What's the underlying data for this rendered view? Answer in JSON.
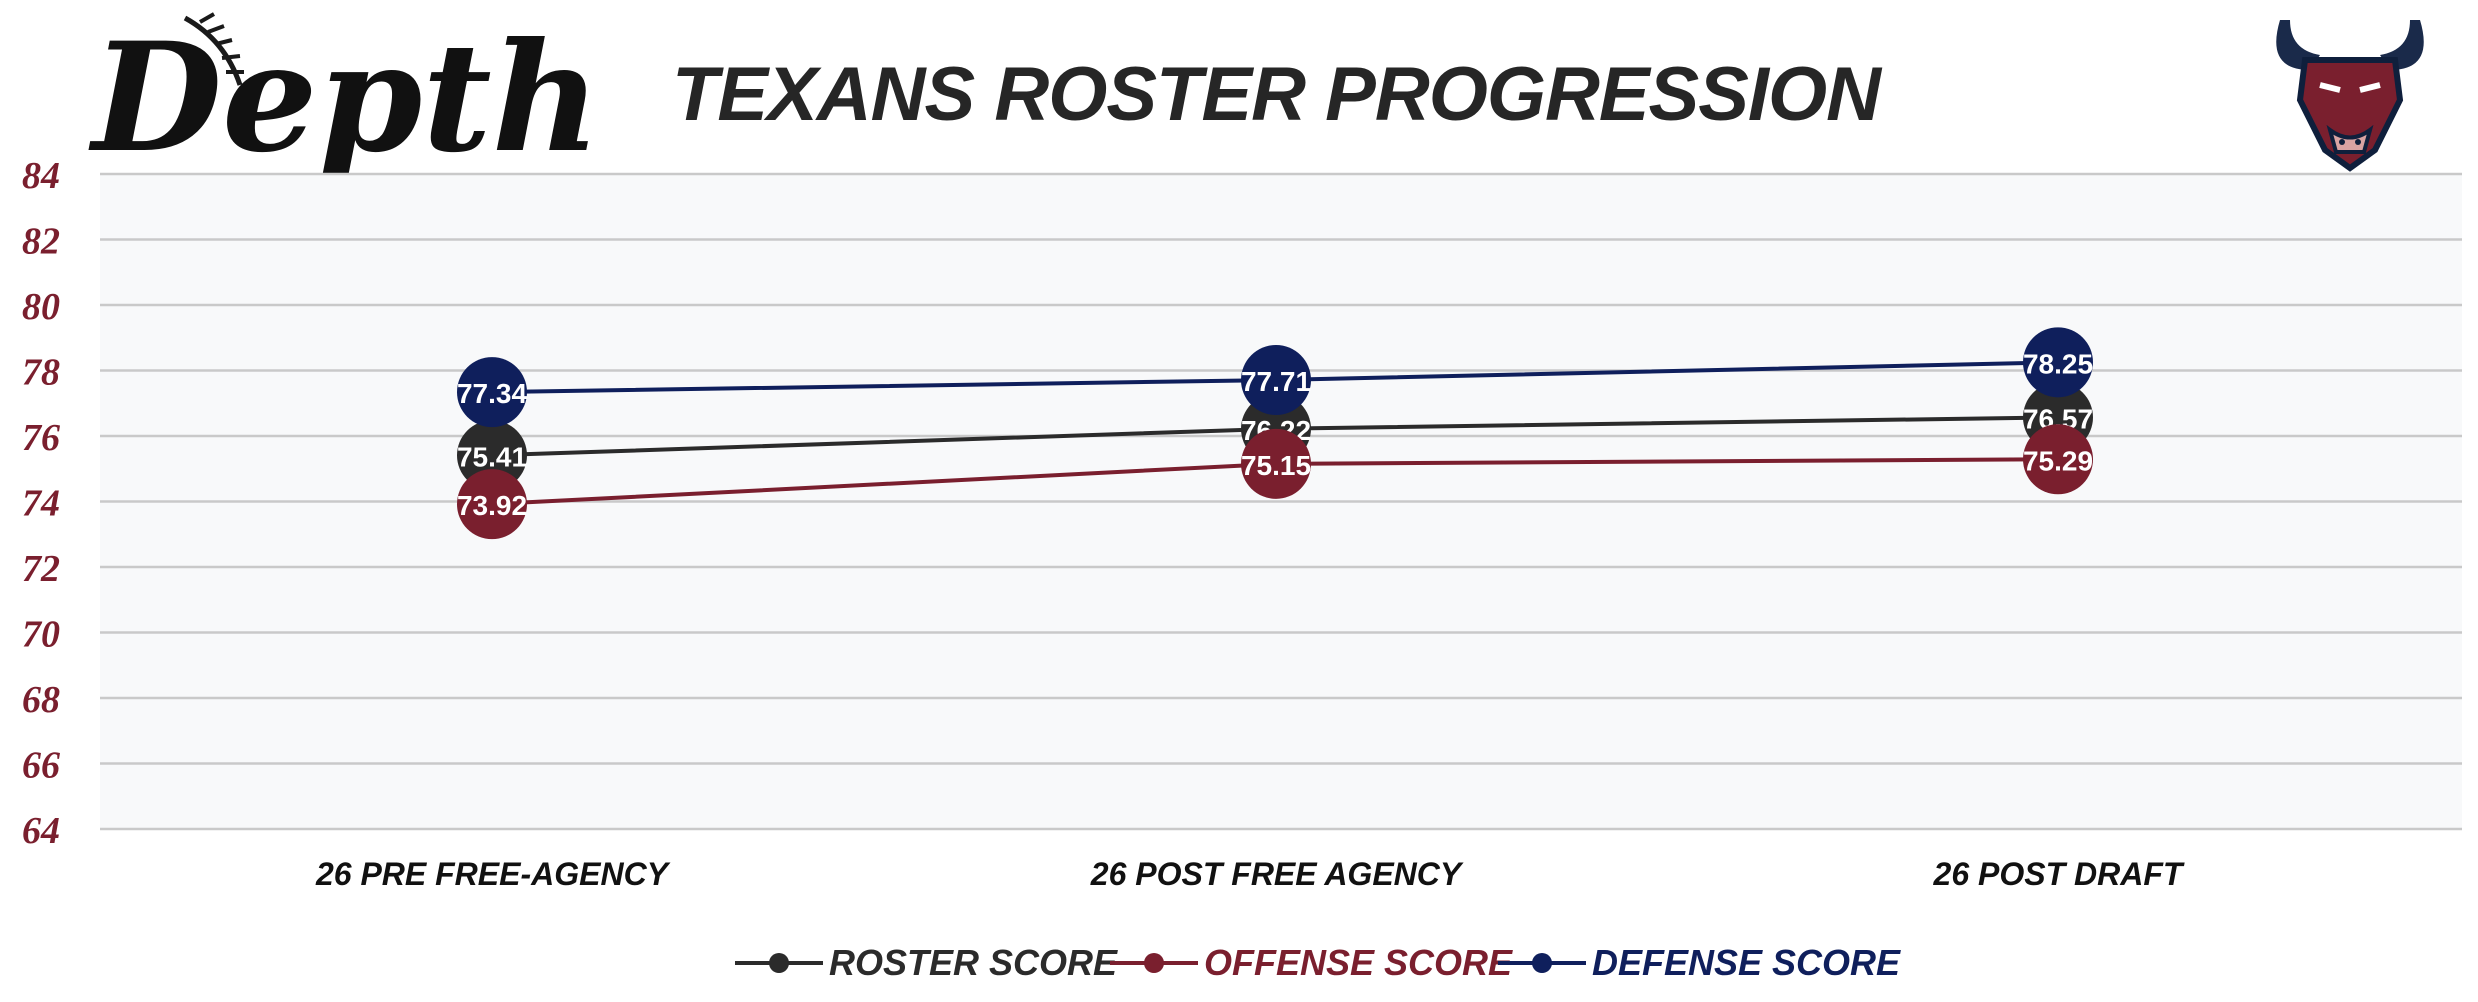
{
  "brand": {
    "logo_text": "Depth",
    "logo_icon": "baseball-stitch-icon",
    "mascot_icon": "bull-head-icon"
  },
  "colors": {
    "roster": "#2b2b2b",
    "offense": "#7a1f2e",
    "defense": "#0f1f5c",
    "axis_tick": "#7a1f2e",
    "grid": "#c9c9c9",
    "plot_bg": "#f8f9fa",
    "title": "#262626"
  },
  "chart_data": {
    "type": "line",
    "title": "TEXANS ROSTER PROGRESSION",
    "categories": [
      "26 PRE FREE-AGENCY",
      "26 POST FREE AGENCY",
      "26 POST DRAFT"
    ],
    "ylim": [
      64,
      84
    ],
    "yticks": [
      84,
      82,
      80,
      78,
      76,
      74,
      72,
      70,
      68,
      66,
      64
    ],
    "grid": true,
    "legend_position": "bottom-center",
    "series": [
      {
        "key": "roster",
        "name": "ROSTER SCORE",
        "values": [
          75.41,
          76.22,
          76.57
        ]
      },
      {
        "key": "offense",
        "name": "OFFENSE SCORE",
        "values": [
          73.92,
          75.15,
          75.29
        ]
      },
      {
        "key": "defense",
        "name": "DEFENSE SCORE",
        "values": [
          77.34,
          77.71,
          78.25
        ]
      }
    ]
  }
}
